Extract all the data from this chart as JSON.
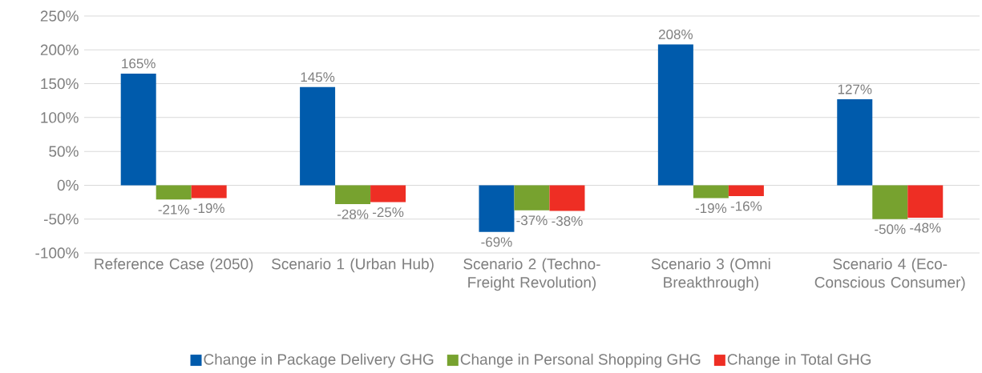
{
  "chart_data": {
    "type": "bar",
    "categories": [
      "Reference Case (2050)",
      "Scenario 1 (Urban Hub)",
      "Scenario 2 (Techno-Freight Revolution)",
      "Scenario 3 (Omni Breakthrough)",
      "Scenario 4 (Eco-Conscious Consumer)"
    ],
    "series": [
      {
        "name": "Change in Package Delivery GHG",
        "color": "#005bac",
        "values": [
          165,
          145,
          -69,
          208,
          127
        ],
        "value_labels": [
          "165%",
          "145%",
          "-69%",
          "208%",
          "127%"
        ]
      },
      {
        "name": "Change in Personal Shopping GHG",
        "color": "#77a22f",
        "values": [
          -21,
          -28,
          -37,
          -19,
          -50
        ],
        "value_labels": [
          "-21%",
          "-28%",
          "-37%",
          "-19%",
          "-50%"
        ]
      },
      {
        "name": "Change in Total GHG",
        "color": "#ee2e24",
        "values": [
          -19,
          -25,
          -38,
          -16,
          -48
        ],
        "value_labels": [
          "-19%",
          "-25%",
          "-38%",
          "-16%",
          "-48%"
        ]
      }
    ],
    "ylim": [
      -100,
      250
    ],
    "yticks": [
      {
        "value": -100,
        "label": "-100%"
      },
      {
        "value": -50,
        "label": "-50%"
      },
      {
        "value": 0,
        "label": "0%"
      },
      {
        "value": 50,
        "label": "50%"
      },
      {
        "value": 100,
        "label": "100%"
      },
      {
        "value": 150,
        "label": "150%"
      },
      {
        "value": 200,
        "label": "200%"
      },
      {
        "value": 250,
        "label": "250%"
      }
    ],
    "grid": "y",
    "legend": "bottom"
  }
}
